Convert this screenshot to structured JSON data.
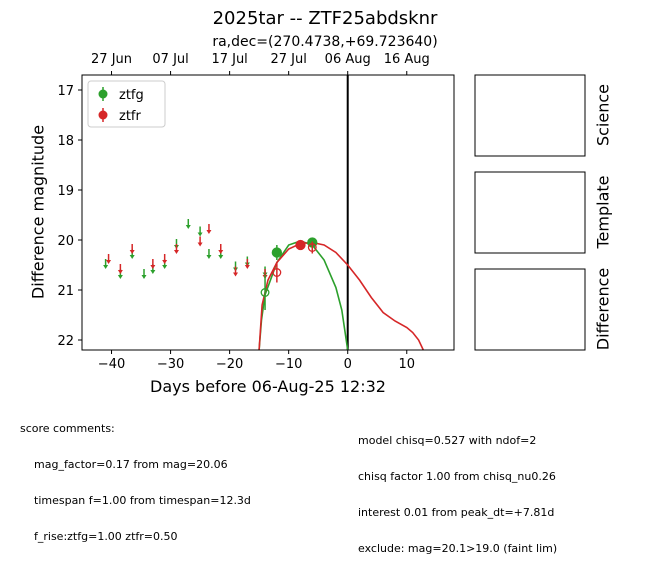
{
  "figure": {
    "title": "2025tar -- ZTF25abdsknr",
    "subtitle": "ra,dec=(270.4738,+69.723640)"
  },
  "chart_data": {
    "type": "scatter",
    "xlabel": "Days before 06-Aug-25 12:32",
    "ylabel": "Difference magnitude",
    "xlim": [
      -45,
      18
    ],
    "ylim": [
      22.2,
      16.7
    ],
    "y_inverted": true,
    "x_ticks": [
      -40,
      -30,
      -20,
      -10,
      0,
      10
    ],
    "y_ticks": [
      17,
      18,
      19,
      20,
      21,
      22
    ],
    "top_axis_ticks": [
      {
        "label": "27 Jun",
        "x": -40
      },
      {
        "label": "07 Jul",
        "x": -30
      },
      {
        "label": "17 Jul",
        "x": -20
      },
      {
        "label": "27 Jul",
        "x": -10
      },
      {
        "label": "06 Aug",
        "x": 0
      },
      {
        "label": "16 Aug",
        "x": 10
      }
    ],
    "vertical_line_x": 0,
    "legend": {
      "placement": "top-left"
    },
    "series": [
      {
        "name": "ztfg",
        "color": "#2ca02c",
        "upper_limits": [
          {
            "x": -41,
            "y": 20.5
          },
          {
            "x": -38.5,
            "y": 20.7
          },
          {
            "x": -36.5,
            "y": 20.3
          },
          {
            "x": -34.5,
            "y": 20.7
          },
          {
            "x": -33,
            "y": 20.6
          },
          {
            "x": -31,
            "y": 20.5
          },
          {
            "x": -29,
            "y": 20.1
          },
          {
            "x": -27,
            "y": 19.7
          },
          {
            "x": -25,
            "y": 19.85
          },
          {
            "x": -23.5,
            "y": 20.3
          },
          {
            "x": -21.5,
            "y": 20.3
          },
          {
            "x": -19,
            "y": 20.55
          },
          {
            "x": -17,
            "y": 20.45
          },
          {
            "x": -14,
            "y": 20.65
          }
        ],
        "detections": [
          {
            "x": -12,
            "y": 20.25,
            "err": 0.15,
            "filled": true
          },
          {
            "x": -6,
            "y": 20.05,
            "err": 0.1,
            "filled": true
          },
          {
            "x": -14,
            "y": 21.05,
            "err": 0.35,
            "filled": false
          }
        ],
        "model_curve": [
          {
            "x": -15,
            "y": 22.2
          },
          {
            "x": -14.6,
            "y": 21.6
          },
          {
            "x": -14,
            "y": 21.1
          },
          {
            "x": -12,
            "y": 20.45
          },
          {
            "x": -10,
            "y": 20.1
          },
          {
            "x": -8,
            "y": 20.02
          },
          {
            "x": -6,
            "y": 20.1
          },
          {
            "x": -4,
            "y": 20.4
          },
          {
            "x": -2,
            "y": 20.95
          },
          {
            "x": -1,
            "y": 21.4
          },
          {
            "x": 0,
            "y": 22.2
          }
        ]
      },
      {
        "name": "ztfr",
        "color": "#d62728",
        "upper_limits": [
          {
            "x": -40.5,
            "y": 20.4
          },
          {
            "x": -38.5,
            "y": 20.6
          },
          {
            "x": -36.5,
            "y": 20.2
          },
          {
            "x": -33,
            "y": 20.5
          },
          {
            "x": -31,
            "y": 20.4
          },
          {
            "x": -29,
            "y": 20.2
          },
          {
            "x": -25,
            "y": 20.05
          },
          {
            "x": -23.5,
            "y": 19.8
          },
          {
            "x": -21.5,
            "y": 20.2
          },
          {
            "x": -19,
            "y": 20.65
          },
          {
            "x": -17,
            "y": 20.5
          },
          {
            "x": -14,
            "y": 20.7
          }
        ],
        "detections": [
          {
            "x": -8,
            "y": 20.1,
            "err": 0.1,
            "filled": true
          },
          {
            "x": -12,
            "y": 20.65,
            "err": 0.2,
            "filled": false
          },
          {
            "x": -6,
            "y": 20.15,
            "err": 0.12,
            "filled": false
          }
        ],
        "model_curve": [
          {
            "x": -15,
            "y": 22.2
          },
          {
            "x": -14.5,
            "y": 21.3
          },
          {
            "x": -13.5,
            "y": 20.8
          },
          {
            "x": -12,
            "y": 20.45
          },
          {
            "x": -10,
            "y": 20.18
          },
          {
            "x": -8,
            "y": 20.07
          },
          {
            "x": -6,
            "y": 20.05
          },
          {
            "x": -4,
            "y": 20.1
          },
          {
            "x": -2,
            "y": 20.25
          },
          {
            "x": 0,
            "y": 20.5
          },
          {
            "x": 2,
            "y": 20.8
          },
          {
            "x": 4,
            "y": 21.15
          },
          {
            "x": 6,
            "y": 21.45
          },
          {
            "x": 8,
            "y": 21.62
          },
          {
            "x": 10,
            "y": 21.75
          },
          {
            "x": 11,
            "y": 21.85
          },
          {
            "x": 12,
            "y": 22.0
          },
          {
            "x": 12.8,
            "y": 22.2
          }
        ]
      }
    ]
  },
  "side_panels": {
    "labels": [
      "Science",
      "Template",
      "Difference"
    ]
  },
  "comments": {
    "left": [
      "score comments:",
      "mag_factor=0.17 from mag=20.06",
      "timespan f=1.00 from timespan=12.3d",
      "f_rise:ztfg=1.00 ztfr=0.50"
    ],
    "right": [
      "model chisq=0.527 with ndof=2",
      "chisq factor 1.00 from chisq_nu0.26",
      "interest 0.01 from peak_dt=+7.81d",
      "exclude: mag=20.1>19.0 (faint lim)"
    ]
  }
}
